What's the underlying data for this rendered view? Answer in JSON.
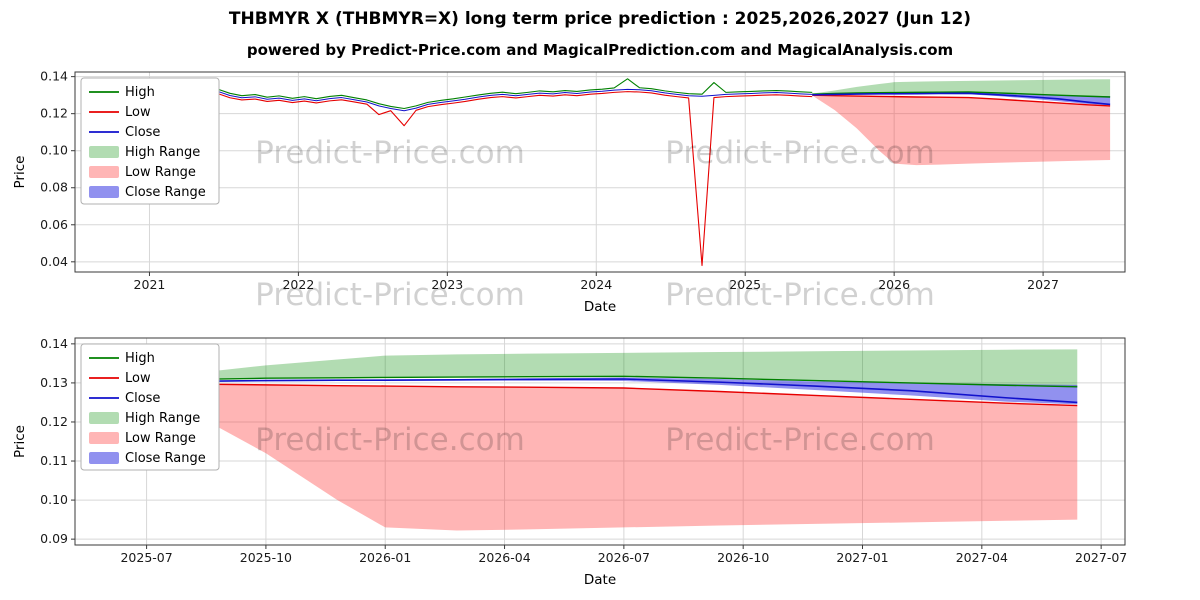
{
  "page": {
    "title": "THBMYR X (THBMYR=X) long term price prediction : 2025,2026,2027 (Jun 12)",
    "subtitle": "powered by Predict-Price.com and MagicalPrediction.com and MagicalAnalysis.com",
    "watermark": "Predict-Price.com"
  },
  "colors": {
    "high": "#008000",
    "low": "#e60000",
    "close": "#1111cc",
    "high_range": "rgba(0,140,0,0.30)",
    "low_range": "rgba(255,60,60,0.38)",
    "close_range": "rgba(45,45,225,0.52)",
    "grid": "#d7d7d7",
    "spine": "#3a3a3a"
  },
  "chart_data": {
    "type": "line",
    "grid": true,
    "legend_position": "upper left",
    "legend": [
      {
        "label": "High",
        "swatch": "line",
        "color_key": "high"
      },
      {
        "label": "Low",
        "swatch": "line",
        "color_key": "low"
      },
      {
        "label": "Close",
        "swatch": "line",
        "color_key": "close"
      },
      {
        "label": "High Range",
        "swatch": "patch",
        "color_key": "high_range"
      },
      {
        "label": "Low Range",
        "swatch": "patch",
        "color_key": "low_range"
      },
      {
        "label": "Close Range",
        "swatch": "patch",
        "color_key": "close_range"
      }
    ],
    "history": {
      "x": [
        2020.54,
        2020.62,
        2020.71,
        2020.79,
        2020.87,
        2020.96,
        2021.04,
        2021.12,
        2021.21,
        2021.29,
        2021.37,
        2021.46,
        2021.54,
        2021.62,
        2021.71,
        2021.79,
        2021.87,
        2021.96,
        2022.04,
        2022.12,
        2022.21,
        2022.29,
        2022.37,
        2022.46,
        2022.54,
        2022.62,
        2022.71,
        2022.79,
        2022.87,
        2022.96,
        2023.04,
        2023.12,
        2023.21,
        2023.29,
        2023.37,
        2023.46,
        2023.54,
        2023.62,
        2023.71,
        2023.79,
        2023.87,
        2023.96,
        2024.04,
        2024.12,
        2024.21,
        2024.29,
        2024.37,
        2024.46,
        2024.54,
        2024.62,
        2024.71,
        2024.79,
        2024.87,
        2024.96,
        2025.04,
        2025.12,
        2025.21,
        2025.29,
        2025.37,
        2025.45
      ],
      "high": [
        0.137,
        0.1363,
        0.1368,
        0.1359,
        0.1364,
        0.1355,
        0.1359,
        0.1351,
        0.1356,
        0.1347,
        0.1342,
        0.1332,
        0.131,
        0.1297,
        0.1303,
        0.1289,
        0.1296,
        0.1283,
        0.1292,
        0.1281,
        0.1293,
        0.1299,
        0.1287,
        0.1274,
        0.1254,
        0.1239,
        0.1228,
        0.1242,
        0.1261,
        0.1272,
        0.128,
        0.129,
        0.1301,
        0.131,
        0.1316,
        0.1308,
        0.1315,
        0.1323,
        0.1318,
        0.1325,
        0.132,
        0.1328,
        0.1332,
        0.1339,
        0.1388,
        0.134,
        0.1335,
        0.1323,
        0.1315,
        0.1308,
        0.1305,
        0.1368,
        0.1315,
        0.1318,
        0.132,
        0.1323,
        0.1325,
        0.1322,
        0.1318,
        0.1315
      ],
      "low": [
        0.1346,
        0.134,
        0.1344,
        0.1336,
        0.134,
        0.1332,
        0.1335,
        0.1328,
        0.1332,
        0.1324,
        0.1318,
        0.1308,
        0.1286,
        0.1274,
        0.1279,
        0.1266,
        0.1272,
        0.126,
        0.1268,
        0.1258,
        0.1269,
        0.1275,
        0.1264,
        0.1251,
        0.1195,
        0.1216,
        0.1135,
        0.1218,
        0.1238,
        0.1249,
        0.1257,
        0.1266,
        0.1278,
        0.1287,
        0.1292,
        0.1285,
        0.1292,
        0.1299,
        0.1295,
        0.1302,
        0.1297,
        0.1305,
        0.1309,
        0.1315,
        0.1319,
        0.1317,
        0.1312,
        0.13,
        0.1292,
        0.1285,
        0.038,
        0.1287,
        0.1292,
        0.1295,
        0.1297,
        0.13,
        0.1302,
        0.1299,
        0.1295,
        0.1292
      ],
      "close": [
        0.1358,
        0.1352,
        0.1356,
        0.1348,
        0.1352,
        0.1344,
        0.1347,
        0.134,
        0.1344,
        0.1336,
        0.133,
        0.132,
        0.1298,
        0.1286,
        0.1291,
        0.1278,
        0.1284,
        0.1272,
        0.128,
        0.127,
        0.1281,
        0.1287,
        0.1276,
        0.1263,
        0.1242,
        0.1228,
        0.1216,
        0.123,
        0.125,
        0.1261,
        0.1269,
        0.1278,
        0.129,
        0.1299,
        0.1304,
        0.1297,
        0.1304,
        0.1311,
        0.1307,
        0.1314,
        0.1309,
        0.1317,
        0.1321,
        0.1327,
        0.1331,
        0.1329,
        0.1324,
        0.1312,
        0.1304,
        0.1297,
        0.1294,
        0.1299,
        0.1304,
        0.1307,
        0.1309,
        0.1312,
        0.1314,
        0.1311,
        0.1307,
        0.1304
      ]
    },
    "prediction": {
      "x": [
        2025.45,
        2025.6,
        2025.75,
        2025.9,
        2026.0,
        2026.15,
        2026.3,
        2026.5,
        2026.7,
        2026.9,
        2027.1,
        2027.3,
        2027.45
      ],
      "high": [
        0.1305,
        0.1309,
        0.1312,
        0.1313,
        0.1314,
        0.1315,
        0.1316,
        0.1317,
        0.1312,
        0.1306,
        0.13,
        0.1294,
        0.129
      ],
      "low": [
        0.13,
        0.1297,
        0.1295,
        0.1293,
        0.1292,
        0.129,
        0.1289,
        0.1287,
        0.1278,
        0.1268,
        0.1258,
        0.1248,
        0.1242
      ],
      "close": [
        0.1302,
        0.1304,
        0.1306,
        0.1307,
        0.1307,
        0.1308,
        0.1309,
        0.131,
        0.1302,
        0.1292,
        0.128,
        0.1262,
        0.125
      ],
      "high_range_upper": [
        0.1308,
        0.1325,
        0.1345,
        0.136,
        0.137,
        0.1373,
        0.1375,
        0.1377,
        0.1379,
        0.1381,
        0.1383,
        0.1385,
        0.1386
      ],
      "low_range_lower": [
        0.1298,
        0.122,
        0.112,
        0.1,
        0.093,
        0.0922,
        0.0925,
        0.093,
        0.0935,
        0.0939,
        0.0943,
        0.0947,
        0.095
      ],
      "close_range_upper": [
        0.1303,
        0.1305,
        0.1307,
        0.1308,
        0.1309,
        0.131,
        0.1312,
        0.1314,
        0.131,
        0.1304,
        0.13,
        0.1297,
        0.1295
      ],
      "close_range_lower": [
        0.1301,
        0.1303,
        0.1304,
        0.1305,
        0.1306,
        0.1306,
        0.1306,
        0.1305,
        0.1295,
        0.1282,
        0.1268,
        0.1252,
        0.1245
      ]
    },
    "charts": [
      {
        "name": "full-history-and-prediction",
        "xlabel": "Date",
        "ylabel": "Price",
        "xlim": [
          2020.5,
          2027.55
        ],
        "ylim": [
          0.0345,
          0.1425
        ],
        "show_history": true,
        "xticks": [
          {
            "v": 2021,
            "label": "2021"
          },
          {
            "v": 2022,
            "label": "2022"
          },
          {
            "v": 2023,
            "label": "2023"
          },
          {
            "v": 2024,
            "label": "2024"
          },
          {
            "v": 2025,
            "label": "2025"
          },
          {
            "v": 2026,
            "label": "2026"
          },
          {
            "v": 2027,
            "label": "2027"
          }
        ],
        "yticks": [
          {
            "v": 0.04,
            "label": "0.04"
          },
          {
            "v": 0.06,
            "label": "0.06"
          },
          {
            "v": 0.08,
            "label": "0.08"
          },
          {
            "v": 0.1,
            "label": "0.10"
          },
          {
            "v": 0.12,
            "label": "0.12"
          },
          {
            "v": 0.14,
            "label": "0.14"
          }
        ]
      },
      {
        "name": "prediction-zoom",
        "xlabel": "Date",
        "ylabel": "Price",
        "xlim": [
          2025.35,
          2027.55
        ],
        "ylim": [
          0.0885,
          0.1415
        ],
        "show_history": false,
        "xticks": [
          {
            "v": 2025.5,
            "label": "2025-07"
          },
          {
            "v": 2025.75,
            "label": "2025-10"
          },
          {
            "v": 2026.0,
            "label": "2026-01"
          },
          {
            "v": 2026.25,
            "label": "2026-04"
          },
          {
            "v": 2026.5,
            "label": "2026-07"
          },
          {
            "v": 2026.75,
            "label": "2026-10"
          },
          {
            "v": 2027.0,
            "label": "2027-01"
          },
          {
            "v": 2027.25,
            "label": "2027-04"
          },
          {
            "v": 2027.5,
            "label": "2027-07"
          }
        ],
        "yticks": [
          {
            "v": 0.09,
            "label": "0.09"
          },
          {
            "v": 0.1,
            "label": "0.10"
          },
          {
            "v": 0.11,
            "label": "0.11"
          },
          {
            "v": 0.12,
            "label": "0.12"
          },
          {
            "v": 0.13,
            "label": "0.13"
          },
          {
            "v": 0.14,
            "label": "0.14"
          }
        ]
      }
    ]
  }
}
